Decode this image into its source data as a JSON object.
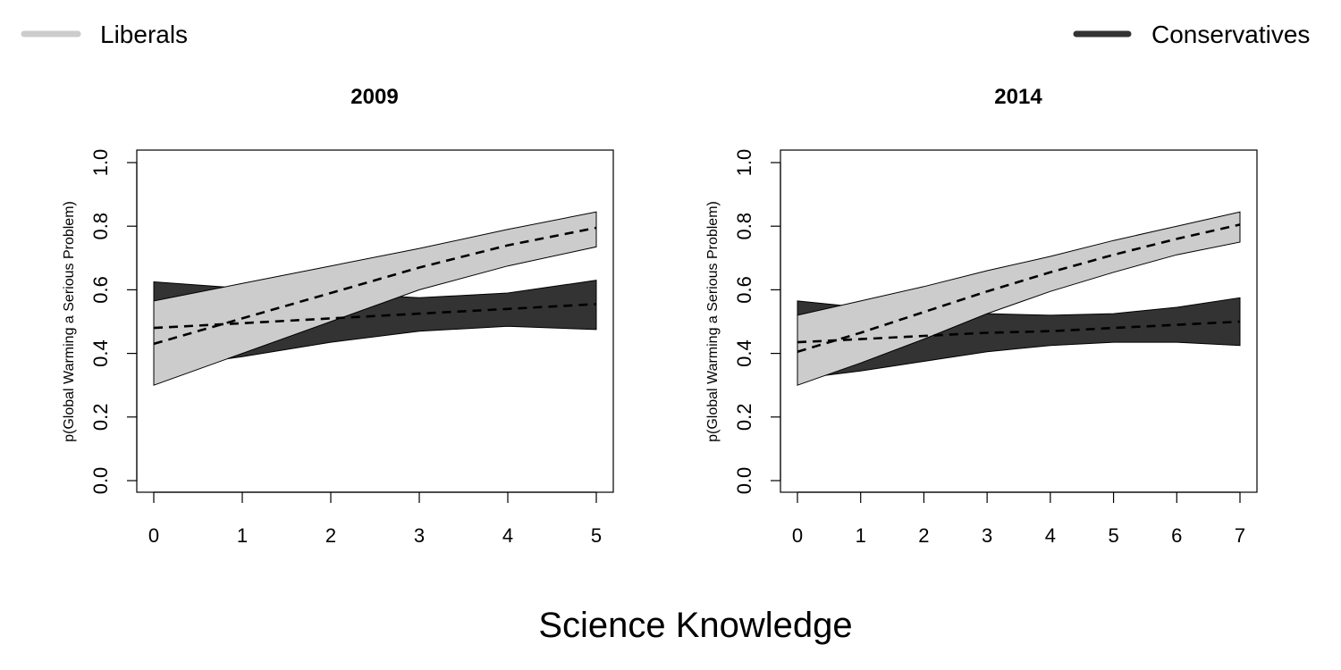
{
  "legend": {
    "items": [
      {
        "label": "Liberals",
        "color": "#cccccc"
      },
      {
        "label": "Conservatives",
        "color": "#333333"
      }
    ]
  },
  "shared_xlabel": "Science Knowledge",
  "chart_data": [
    {
      "type": "area",
      "title": "2009",
      "xlabel": "",
      "ylabel": "p(Global Warming a Serious Problem)",
      "xlim": [
        0,
        5
      ],
      "ylim": [
        0,
        1
      ],
      "x_ticks": [
        0,
        1,
        2,
        3,
        4,
        5
      ],
      "y_ticks": [
        "0.0",
        "0.2",
        "0.4",
        "0.6",
        "0.8",
        "1.0"
      ],
      "grid": false,
      "series": [
        {
          "name": "Conservatives",
          "color": "#333333",
          "x": [
            0,
            1,
            2,
            3,
            4,
            5
          ],
          "mean": [
            0.48,
            0.495,
            0.51,
            0.525,
            0.54,
            0.555
          ],
          "lower": [
            0.35,
            0.39,
            0.435,
            0.47,
            0.485,
            0.475
          ],
          "upper": [
            0.625,
            0.605,
            0.59,
            0.575,
            0.59,
            0.63
          ]
        },
        {
          "name": "Liberals",
          "color": "#cccccc",
          "x": [
            0,
            1,
            2,
            3,
            4,
            5
          ],
          "mean": [
            0.43,
            0.51,
            0.59,
            0.67,
            0.74,
            0.795
          ],
          "lower": [
            0.3,
            0.4,
            0.5,
            0.6,
            0.675,
            0.735
          ],
          "upper": [
            0.565,
            0.62,
            0.675,
            0.73,
            0.79,
            0.845
          ]
        }
      ]
    },
    {
      "type": "area",
      "title": "2014",
      "xlabel": "",
      "ylabel": "p(Global Warming a Serious Problem)",
      "xlim": [
        0,
        7
      ],
      "ylim": [
        0,
        1
      ],
      "x_ticks": [
        0,
        1,
        2,
        3,
        4,
        5,
        6,
        7
      ],
      "y_ticks": [
        "0.0",
        "0.2",
        "0.4",
        "0.6",
        "0.8",
        "1.0"
      ],
      "grid": false,
      "series": [
        {
          "name": "Conservatives",
          "color": "#333333",
          "x": [
            0,
            1,
            2,
            3,
            4,
            5,
            6,
            7
          ],
          "mean": [
            0.435,
            0.445,
            0.455,
            0.465,
            0.47,
            0.48,
            0.49,
            0.5
          ],
          "lower": [
            0.32,
            0.345,
            0.375,
            0.405,
            0.425,
            0.435,
            0.435,
            0.425
          ],
          "upper": [
            0.565,
            0.545,
            0.535,
            0.525,
            0.52,
            0.525,
            0.545,
            0.575
          ]
        },
        {
          "name": "Liberals",
          "color": "#cccccc",
          "x": [
            0,
            1,
            2,
            3,
            4,
            5,
            6,
            7
          ],
          "mean": [
            0.405,
            0.465,
            0.53,
            0.595,
            0.655,
            0.71,
            0.76,
            0.805
          ],
          "lower": [
            0.3,
            0.37,
            0.445,
            0.525,
            0.595,
            0.655,
            0.71,
            0.75
          ],
          "upper": [
            0.52,
            0.565,
            0.61,
            0.66,
            0.705,
            0.755,
            0.8,
            0.845
          ]
        }
      ]
    }
  ]
}
